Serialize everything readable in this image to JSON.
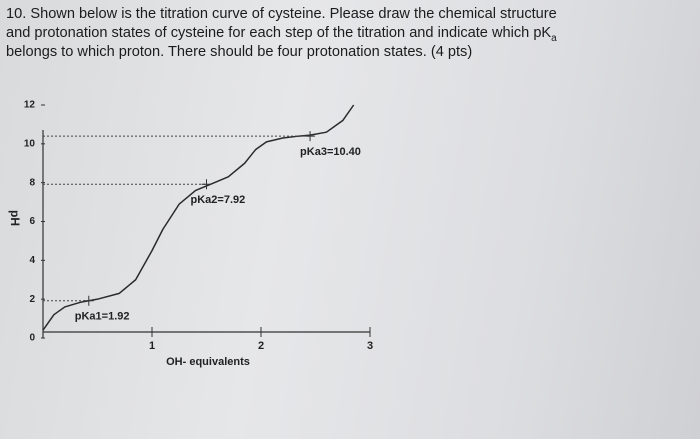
{
  "question": {
    "line1": "10. Shown below is the titration curve of cysteine. Please draw the chemical structure",
    "line2": "and protonation states of cysteine for each step of the titration and indicate which pK",
    "line2_subscript": "a",
    "line3": "belongs to which proton. There should be four protonation states. (4 pts)"
  },
  "chart_data": {
    "type": "line",
    "xlabel": "OH- equivalents",
    "ylabel": "pH",
    "xlim": [
      0,
      3
    ],
    "ylim": [
      0,
      12
    ],
    "xticks": [
      1,
      2,
      3
    ],
    "yticks": [
      0,
      2,
      4,
      6,
      8,
      10,
      12
    ],
    "x": [
      0,
      0.1,
      0.2,
      0.35,
      0.5,
      0.7,
      0.85,
      1.0,
      1.1,
      1.25,
      1.4,
      1.55,
      1.7,
      1.85,
      1.95,
      2.05,
      2.2,
      2.35,
      2.45,
      2.6,
      2.75,
      2.85
    ],
    "series": [
      {
        "color": "#2b2b2b",
        "values": [
          0.4,
          1.2,
          1.6,
          1.85,
          2.0,
          2.3,
          3.0,
          4.5,
          5.6,
          6.9,
          7.6,
          7.95,
          8.3,
          9.0,
          9.7,
          10.1,
          10.3,
          10.4,
          10.45,
          10.6,
          11.2,
          12.0
        ]
      }
    ],
    "annotations": [
      {
        "text": "pKa1=1.92",
        "x": 0.42,
        "y": 1.92
      },
      {
        "text": "pKa2=7.92",
        "x": 1.5,
        "y": 7.92
      },
      {
        "text": "pKa3=10.40",
        "x": 2.45,
        "y": 10.4
      }
    ]
  }
}
